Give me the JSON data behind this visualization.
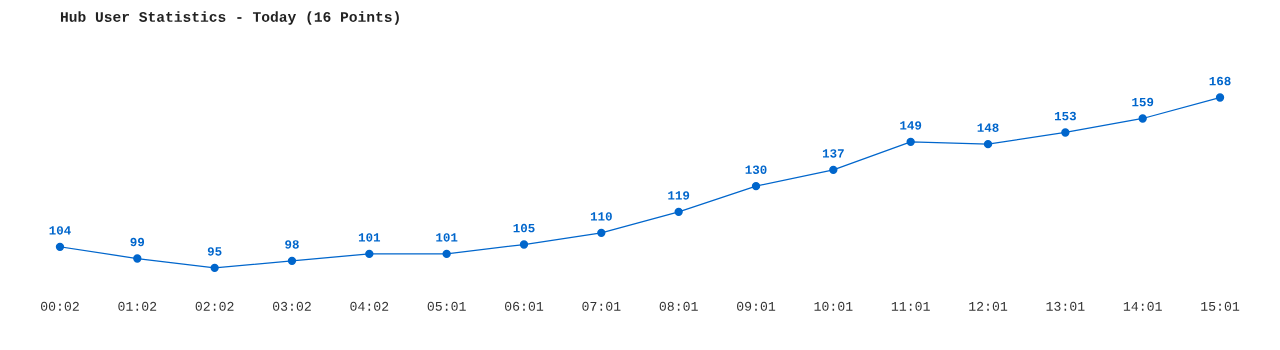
{
  "chart_data": {
    "type": "line",
    "title": "Hub User Statistics - Today (16 Points)",
    "categories": [
      "00:02",
      "01:02",
      "02:02",
      "03:02",
      "04:02",
      "05:01",
      "06:01",
      "07:01",
      "08:01",
      "09:01",
      "10:01",
      "11:01",
      "12:01",
      "13:01",
      "14:01",
      "15:01"
    ],
    "series": [
      {
        "color": "#0066cc",
        "values": [
          104,
          99,
          95,
          98,
          101,
          101,
          105,
          110,
          119,
          130,
          137,
          149,
          148,
          153,
          159,
          168
        ]
      }
    ],
    "data_labels": true,
    "marker": "circle",
    "line_style": "solid",
    "grid": false,
    "legend": false,
    "tick_labels": "x"
  }
}
